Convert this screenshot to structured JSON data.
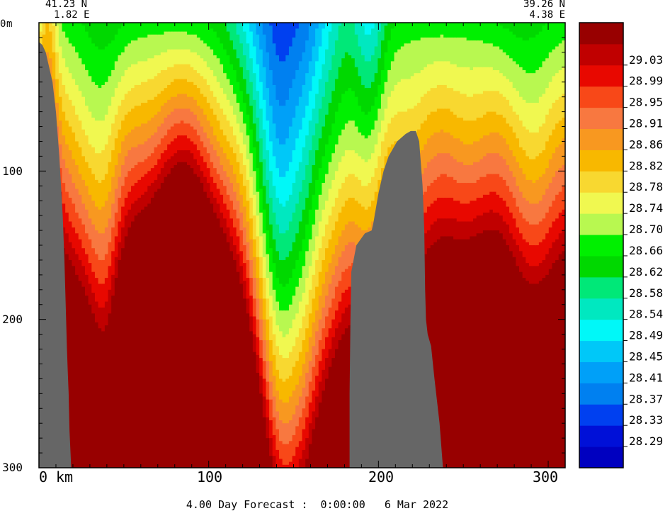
{
  "chart_data": {
    "type": "heatmap",
    "subtype": "vertical section contour",
    "section_start": {
      "lat": "41.23 N",
      "lon": "1.82 E"
    },
    "section_end": {
      "lat": "39.26 N",
      "lon": "4.38 E"
    },
    "x_unit_label": "km",
    "x_ticks": [
      0,
      100,
      200,
      300
    ],
    "x_range": [
      0,
      310
    ],
    "y_unit_label": "m",
    "y_ticks": [
      0,
      100,
      200,
      300
    ],
    "y_range": [
      0,
      300
    ],
    "y_inverted": true,
    "footer": "4.00 Day Forecast :  0:00:00   6 Mar 2022",
    "legend_position": "right",
    "colorbar": [
      {
        "value": null,
        "color": "#0000c0"
      },
      {
        "value": "28.29",
        "color": "#0010d8"
      },
      {
        "value": "28.33",
        "color": "#0040f0"
      },
      {
        "value": "28.37",
        "color": "#0080f0"
      },
      {
        "value": "28.41",
        "color": "#00a0f8"
      },
      {
        "value": "28.45",
        "color": "#00c8f8"
      },
      {
        "value": "28.49",
        "color": "#00f8f8"
      },
      {
        "value": "28.54",
        "color": "#00e8c0"
      },
      {
        "value": "28.58",
        "color": "#00e878"
      },
      {
        "value": "28.62",
        "color": "#00d800"
      },
      {
        "value": "28.66",
        "color": "#00f000"
      },
      {
        "value": "28.70",
        "color": "#b8f850"
      },
      {
        "value": "28.74",
        "color": "#f0f850"
      },
      {
        "value": "28.78",
        "color": "#f8d830"
      },
      {
        "value": "28.82",
        "color": "#f8b800"
      },
      {
        "value": "28.86",
        "color": "#f89820"
      },
      {
        "value": "28.91",
        "color": "#f87840"
      },
      {
        "value": "28.95",
        "color": "#f84818"
      },
      {
        "value": "28.99",
        "color": "#e80800"
      },
      {
        "value": "29.03",
        "color": "#c00000"
      },
      {
        "value": null,
        "color": "#980000"
      }
    ],
    "land_color": "#666666"
  }
}
